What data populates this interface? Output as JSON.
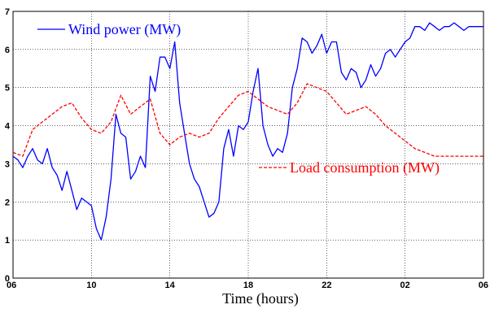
{
  "chart_data": {
    "type": "line",
    "xlabel": "Time (hours)",
    "ylabel": "",
    "ylim": [
      0,
      7
    ],
    "grid": true,
    "x_ticks": [
      "06",
      "10",
      "14",
      "18",
      "22",
      "02",
      "06"
    ],
    "x_tick_hours": [
      0,
      4,
      8,
      12,
      16,
      20,
      24
    ],
    "xlim": [
      0,
      24
    ],
    "y_ticks": [
      "0",
      "1",
      "2",
      "3",
      "4",
      "5",
      "6",
      "7"
    ],
    "y_tick_values": [
      0,
      1,
      2,
      3,
      4,
      5,
      6,
      7
    ],
    "series": [
      {
        "name": "Wind power (MW)",
        "color": "#0000ff",
        "style": "solid",
        "legend": "upper-left",
        "x": [
          0,
          0.25,
          0.5,
          0.75,
          1,
          1.25,
          1.5,
          1.75,
          2,
          2.25,
          2.5,
          2.75,
          3,
          3.25,
          3.5,
          3.75,
          4,
          4.25,
          4.5,
          4.75,
          5,
          5.25,
          5.5,
          5.75,
          6,
          6.25,
          6.5,
          6.75,
          7,
          7.25,
          7.5,
          7.75,
          8,
          8.25,
          8.5,
          8.75,
          9,
          9.25,
          9.5,
          9.75,
          10,
          10.25,
          10.5,
          10.75,
          11,
          11.25,
          11.5,
          11.75,
          12,
          12.25,
          12.5,
          12.75,
          13,
          13.25,
          13.5,
          13.75,
          14,
          14.25,
          14.5,
          14.75,
          15,
          15.25,
          15.5,
          15.75,
          16,
          16.25,
          16.5,
          16.75,
          17,
          17.25,
          17.5,
          17.75,
          18,
          18.25,
          18.5,
          18.75,
          19,
          19.25,
          19.5,
          19.75,
          20,
          20.25,
          20.5,
          20.75,
          21,
          21.25,
          21.5,
          21.75,
          22,
          22.25,
          22.5,
          22.75,
          23,
          23.25,
          23.5,
          23.75,
          24
        ],
        "values": [
          3.2,
          3.1,
          2.9,
          3.2,
          3.4,
          3.1,
          3.0,
          3.4,
          2.9,
          2.7,
          2.3,
          2.8,
          2.3,
          1.8,
          2.1,
          2.0,
          1.9,
          1.3,
          1.0,
          1.6,
          2.6,
          4.3,
          3.8,
          3.7,
          2.6,
          2.8,
          3.2,
          2.9,
          5.3,
          4.9,
          5.8,
          5.8,
          5.5,
          6.2,
          4.6,
          3.8,
          3.0,
          2.6,
          2.4,
          2.0,
          1.6,
          1.7,
          2.0,
          3.4,
          3.9,
          3.2,
          4.0,
          3.9,
          4.1,
          4.9,
          5.5,
          4.0,
          3.5,
          3.2,
          3.4,
          3.3,
          3.8,
          5.0,
          5.5,
          6.3,
          6.2,
          5.9,
          6.1,
          6.4,
          5.9,
          6.2,
          6.2,
          5.4,
          5.2,
          5.5,
          5.4,
          5.0,
          5.2,
          5.6,
          5.3,
          5.5,
          5.9,
          6.0,
          5.8,
          6.0,
          6.2,
          6.3,
          6.6,
          6.6,
          6.5,
          6.7,
          6.6,
          6.5,
          6.6,
          6.6,
          6.7,
          6.6,
          6.5,
          6.6,
          6.6,
          6.6,
          6.6
        ]
      },
      {
        "name": "Load consumption (MW)",
        "color": "#ff0000",
        "style": "dashed",
        "legend": "lower-right",
        "x": [
          0,
          0.5,
          1,
          1.5,
          2,
          2.5,
          3,
          3.5,
          4,
          4.5,
          5,
          5.5,
          6,
          6.5,
          7,
          7.5,
          8,
          8.5,
          9,
          9.5,
          10,
          10.5,
          11,
          11.5,
          12,
          12.5,
          13,
          13.5,
          14,
          14.5,
          15,
          15.5,
          16,
          16.5,
          17,
          17.5,
          18,
          18.5,
          19,
          19.5,
          20,
          20.5,
          21,
          21.5,
          22,
          22.5,
          23,
          23.5,
          24
        ],
        "values": [
          3.3,
          3.2,
          3.9,
          4.1,
          4.3,
          4.5,
          4.6,
          4.2,
          3.9,
          3.8,
          4.1,
          4.8,
          4.3,
          4.5,
          4.7,
          3.8,
          3.5,
          3.7,
          3.8,
          3.7,
          3.8,
          4.2,
          4.5,
          4.8,
          4.9,
          4.7,
          4.5,
          4.4,
          4.3,
          4.6,
          5.1,
          5.0,
          4.9,
          4.6,
          4.3,
          4.4,
          4.5,
          4.3,
          4.0,
          3.8,
          3.6,
          3.4,
          3.3,
          3.2,
          3.2,
          3.2,
          3.2,
          3.2,
          3.2
        ]
      }
    ]
  }
}
